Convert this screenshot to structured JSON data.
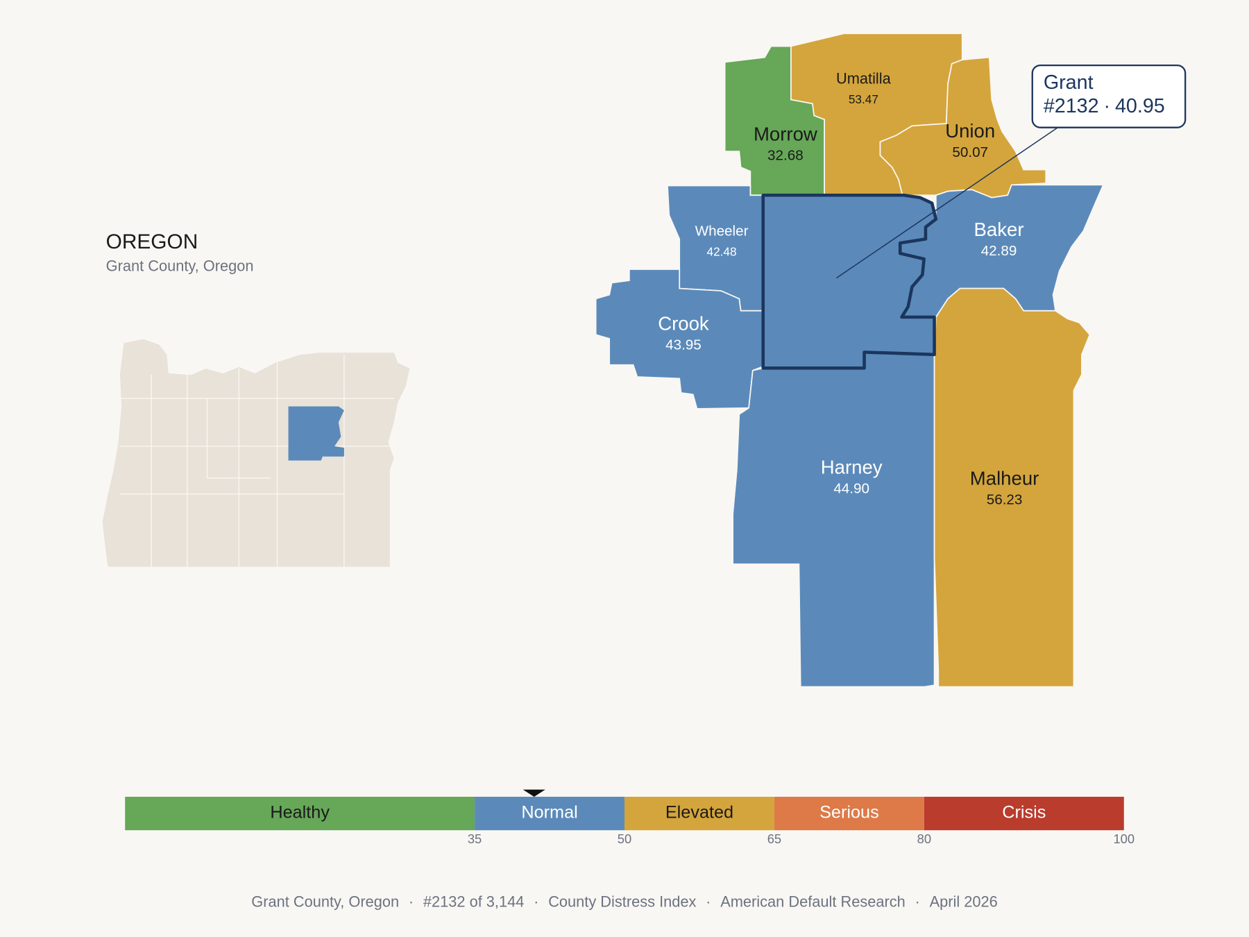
{
  "title": "OREGON",
  "subtitle": "Grant County, Oregon",
  "focus": {
    "name": "Grant",
    "rank": "#2132",
    "separator": "·",
    "value": 40.95
  },
  "counties": [
    {
      "name": "Morrow",
      "value": 32.68
    },
    {
      "name": "Umatilla",
      "value": 53.47
    },
    {
      "name": "Union",
      "value": 50.07
    },
    {
      "name": "Wheeler",
      "value": 42.48
    },
    {
      "name": "Crook",
      "value": 43.95
    },
    {
      "name": "Baker",
      "value": 42.89
    },
    {
      "name": "Harney",
      "value": 44.9,
      "value_label": "44.90"
    },
    {
      "name": "Malheur",
      "value": 56.23
    }
  ],
  "scale": {
    "min": 0,
    "max": 100,
    "bands": [
      {
        "label": "Healthy",
        "color": "#66a758"
      },
      {
        "label": "Normal",
        "color": "#5b8aba"
      },
      {
        "label": "Elevated",
        "color": "#d4a53c"
      },
      {
        "label": "Serious",
        "color": "#dd7a48"
      },
      {
        "label": "Crisis",
        "color": "#b93c2d"
      }
    ],
    "ticks": [
      35,
      50,
      65,
      80,
      100
    ]
  },
  "footer": {
    "items": [
      "Grant County, Oregon",
      "#2132 of 3,144",
      "County Distress Index",
      "American Default Research",
      "April 2026"
    ],
    "separator": "·"
  }
}
